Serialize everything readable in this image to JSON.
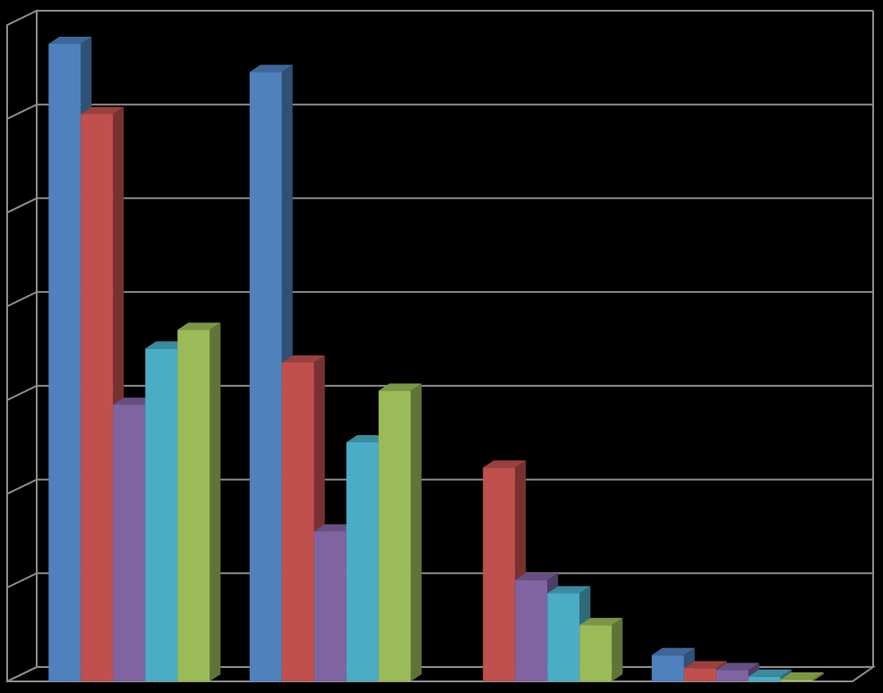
{
  "chart_data": {
    "type": "bar",
    "style": "3d-clustered-column",
    "categories": [
      "",
      "",
      "",
      ""
    ],
    "series": [
      {
        "color": "#4f81bd",
        "values": [
          6.8,
          6.5,
          0,
          0.28
        ]
      },
      {
        "color": "#c0504d",
        "values": [
          6.05,
          3.4,
          2.28,
          0.14
        ]
      },
      {
        "color": "#8064a2",
        "values": [
          2.95,
          1.6,
          1.08,
          0.12
        ]
      },
      {
        "color": "#4bacc6",
        "values": [
          3.55,
          2.55,
          0.94,
          0.05
        ]
      },
      {
        "color": "#9bbb59",
        "values": [
          3.75,
          3.1,
          0.6,
          0.02
        ]
      }
    ],
    "ylim": [
      0,
      7
    ],
    "grid": true,
    "legend": "none",
    "background": "#000000",
    "gridline_color": "#8c8c8c"
  }
}
